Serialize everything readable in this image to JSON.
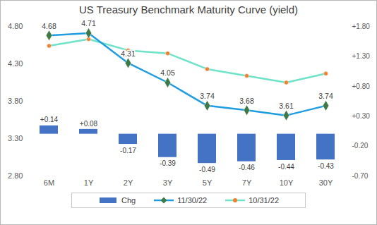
{
  "chart_data": {
    "type": "line",
    "title": "US Treasury Benchmark Maturity Curve (yield)",
    "categories": [
      "6M",
      "1Y",
      "2Y",
      "3Y",
      "5Y",
      "7Y",
      "10Y",
      "30Y"
    ],
    "series": [
      {
        "name": "Chg",
        "type": "bar",
        "axis": "y2",
        "color": "#4472c4",
        "values": [
          0.14,
          0.08,
          -0.17,
          -0.39,
          -0.49,
          -0.46,
          -0.44,
          -0.43
        ],
        "value_labels": [
          "+0.14",
          "+0.08",
          "-0.17",
          "-0.39",
          "-0.49",
          "-0.46",
          "-0.44",
          "-0.43"
        ],
        "data_labels": true
      },
      {
        "name": "11/30/22",
        "type": "line",
        "color": "#1f9de0",
        "marker": "diamond",
        "values": [
          4.68,
          4.71,
          4.31,
          4.05,
          3.74,
          3.68,
          3.61,
          3.74
        ],
        "data_labels": true
      },
      {
        "name": "10/31/22",
        "type": "line",
        "color": "#6fe3c9",
        "marker": "circle",
        "values": [
          4.54,
          4.63,
          4.48,
          4.44,
          4.23,
          4.14,
          4.05,
          4.17
        ]
      }
    ],
    "ylim": [
      2.8,
      4.8
    ],
    "yticks": [
      {
        "value": 2.8,
        "label": "2.80"
      },
      {
        "value": 3.3,
        "label": "3.30"
      },
      {
        "value": 3.8,
        "label": "3.80"
      },
      {
        "value": 4.3,
        "label": "4.30"
      },
      {
        "value": 4.8,
        "label": "4.80"
      }
    ],
    "y2lim": [
      -0.7,
      1.8
    ],
    "y2ticks": [
      {
        "value": -0.7,
        "label": "-0.70"
      },
      {
        "value": -0.2,
        "label": "-0.20"
      },
      {
        "value": 0.3,
        "label": "+0.30"
      },
      {
        "value": 0.8,
        "label": "+0.80"
      },
      {
        "value": 1.3,
        "label": "+1.30"
      },
      {
        "value": 1.8,
        "label": "+1.80"
      }
    ],
    "grid": false,
    "legend": "bottom"
  }
}
